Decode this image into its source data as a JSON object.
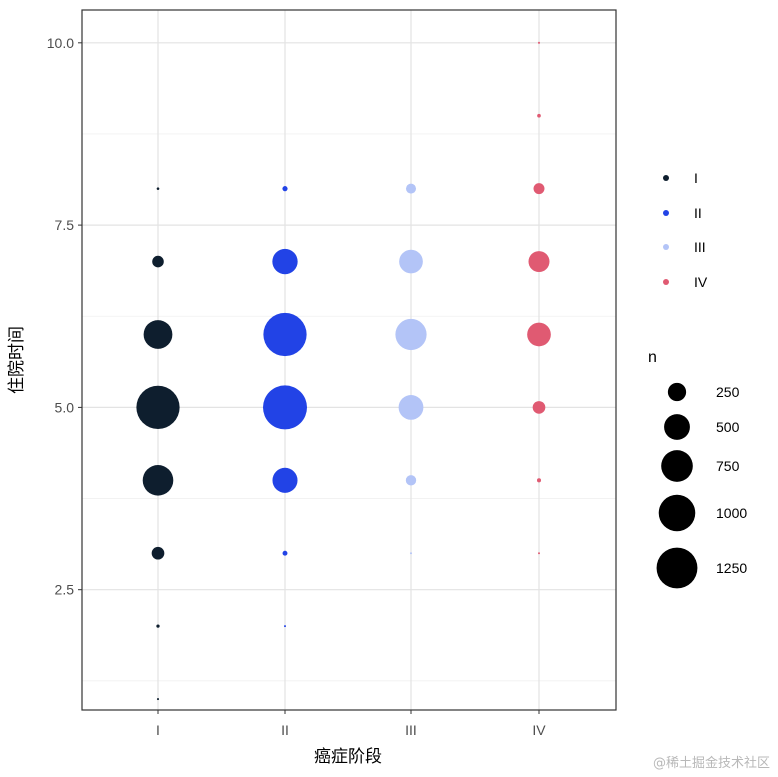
{
  "chart_data": {
    "type": "scatter",
    "title": "",
    "xlabel": "癌症阶段",
    "ylabel": "住院时间",
    "categories": [
      "I",
      "II",
      "III",
      "IV"
    ],
    "x_tick_labels": [
      "I",
      "II",
      "III",
      "IV"
    ],
    "ylim": [
      0.85,
      10.45
    ],
    "y_ticks": [
      2.5,
      5.0,
      7.5,
      10.0
    ],
    "y_tick_labels": [
      "2.5",
      "5.0",
      "7.5",
      "10.0"
    ],
    "grid": true,
    "colors": {
      "I": "#0e1e2e",
      "II": "#2243e6",
      "III": "#b3c4f7",
      "IV": "#e05a72"
    },
    "series": [
      {
        "name": "I",
        "points": [
          {
            "y": 1,
            "n": 3
          },
          {
            "y": 2,
            "n": 8
          },
          {
            "y": 3,
            "n": 120
          },
          {
            "y": 4,
            "n": 700
          },
          {
            "y": 5,
            "n": 1400
          },
          {
            "y": 6,
            "n": 620
          },
          {
            "y": 7,
            "n": 100
          },
          {
            "y": 8,
            "n": 5
          }
        ]
      },
      {
        "name": "II",
        "points": [
          {
            "y": 2,
            "n": 2
          },
          {
            "y": 3,
            "n": 18
          },
          {
            "y": 4,
            "n": 470
          },
          {
            "y": 5,
            "n": 1450
          },
          {
            "y": 6,
            "n": 1400
          },
          {
            "y": 7,
            "n": 480
          },
          {
            "y": 8,
            "n": 20
          }
        ]
      },
      {
        "name": "III",
        "points": [
          {
            "y": 3,
            "n": 3
          },
          {
            "y": 4,
            "n": 80
          },
          {
            "y": 5,
            "n": 460
          },
          {
            "y": 6,
            "n": 730
          },
          {
            "y": 7,
            "n": 420
          },
          {
            "y": 8,
            "n": 75
          }
        ]
      },
      {
        "name": "IV",
        "points": [
          {
            "y": 3,
            "n": 2
          },
          {
            "y": 4,
            "n": 12
          },
          {
            "y": 5,
            "n": 120
          },
          {
            "y": 6,
            "n": 420
          },
          {
            "y": 7,
            "n": 330
          },
          {
            "y": 8,
            "n": 90
          },
          {
            "y": 9,
            "n": 10
          },
          {
            "y": 10,
            "n": 3
          }
        ]
      }
    ],
    "legend": {
      "placement": "right",
      "color_title": "",
      "color_entries": [
        "I",
        "II",
        "III",
        "IV"
      ],
      "size_title": "n",
      "size_entries": [
        250,
        500,
        750,
        1000,
        1250
      ]
    }
  },
  "watermark": "@稀土掘金技术社区"
}
